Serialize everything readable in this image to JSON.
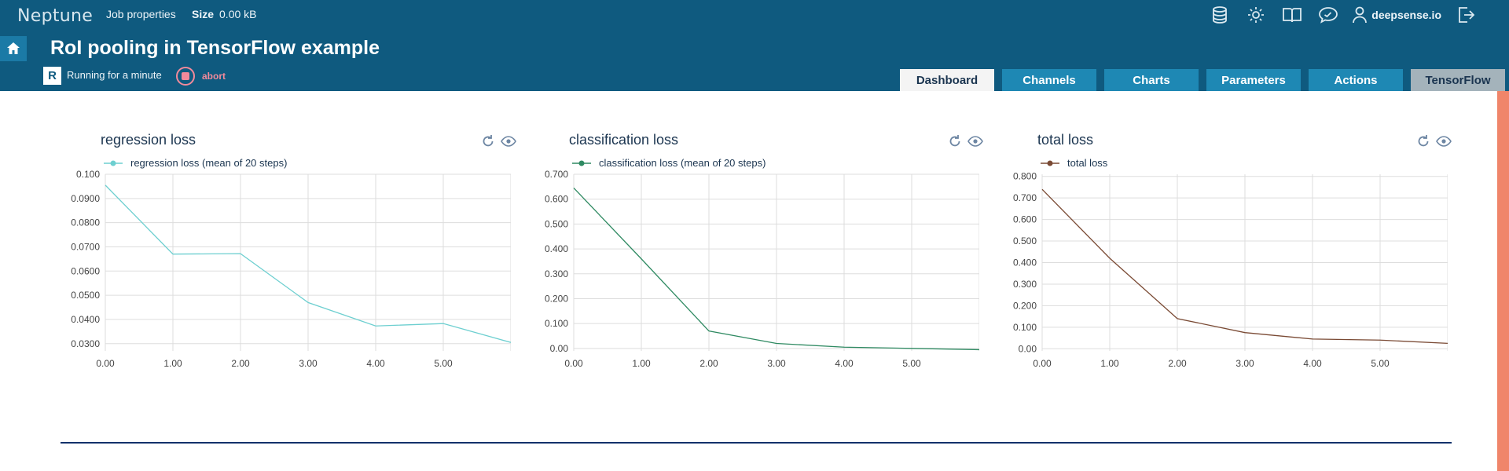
{
  "header": {
    "brand": "Neptune",
    "job_properties": "Job properties",
    "size_label": "Size",
    "size_value": "0.00 kB",
    "user": "deepsense.io",
    "icons": [
      "database-icon",
      "settings-icon",
      "docs-icon",
      "chat-icon",
      "user-icon",
      "logout-icon"
    ]
  },
  "job": {
    "title": "RoI pooling in TensorFlow example",
    "badge": "R",
    "status": "Running for a minute",
    "abort_label": "abort"
  },
  "tabs": [
    {
      "label": "Dashboard",
      "active": true
    },
    {
      "label": "Channels",
      "active": false
    },
    {
      "label": "Charts",
      "active": false
    },
    {
      "label": "Parameters",
      "active": false
    },
    {
      "label": "Actions",
      "active": false
    },
    {
      "label": "TensorFlow",
      "active": false
    }
  ],
  "colors": {
    "header_bg": "#0f5a7f",
    "tab_bg": "#1e88b4",
    "accent_right": "#f0856a",
    "abort": "#f28a9b"
  },
  "chart_data": [
    {
      "type": "line",
      "title": "regression loss",
      "series": [
        {
          "name": "regression loss (mean of 20 steps)",
          "color": "#6dcfd0",
          "x": [
            0,
            1,
            2,
            3,
            4,
            5,
            6
          ],
          "values": [
            0.0955,
            0.067,
            0.0672,
            0.047,
            0.0373,
            0.0383,
            0.0305
          ]
        }
      ],
      "xticks": [
        "0.00",
        "1.00",
        "2.00",
        "3.00",
        "4.00",
        "5.00"
      ],
      "yticks": [
        "0.0300",
        "0.0400",
        "0.0500",
        "0.0600",
        "0.0700",
        "0.0800",
        "0.0900",
        "0.100"
      ],
      "xlim": [
        0,
        6
      ],
      "ylim": [
        0.027,
        0.1
      ],
      "grid": true
    },
    {
      "type": "line",
      "title": "classification loss",
      "series": [
        {
          "name": "classification loss (mean of 20 steps)",
          "color": "#2f8a62",
          "x": [
            0,
            1,
            2,
            3,
            4,
            5,
            6
          ],
          "values": [
            0.645,
            0.36,
            0.07,
            0.02,
            0.005,
            0.0,
            -0.005
          ]
        }
      ],
      "xticks": [
        "0.00",
        "1.00",
        "2.00",
        "3.00",
        "4.00",
        "5.00"
      ],
      "yticks": [
        "0.00",
        "0.100",
        "0.200",
        "0.300",
        "0.400",
        "0.500",
        "0.600",
        "0.700"
      ],
      "xlim": [
        0,
        6
      ],
      "ylim": [
        -0.01,
        0.7
      ],
      "grid": true
    },
    {
      "type": "line",
      "title": "total loss",
      "series": [
        {
          "name": "total loss",
          "color": "#7a4a34",
          "x": [
            0,
            1,
            2,
            3,
            4,
            5,
            6
          ],
          "values": [
            0.74,
            0.42,
            0.14,
            0.075,
            0.045,
            0.04,
            0.025
          ]
        }
      ],
      "xticks": [
        "0.00",
        "1.00",
        "2.00",
        "3.00",
        "4.00",
        "5.00"
      ],
      "yticks": [
        "0.00",
        "0.100",
        "0.200",
        "0.300",
        "0.400",
        "0.500",
        "0.600",
        "0.700",
        "0.800"
      ],
      "xlim": [
        0,
        6
      ],
      "ylim": [
        -0.01,
        0.81
      ],
      "grid": true
    }
  ]
}
